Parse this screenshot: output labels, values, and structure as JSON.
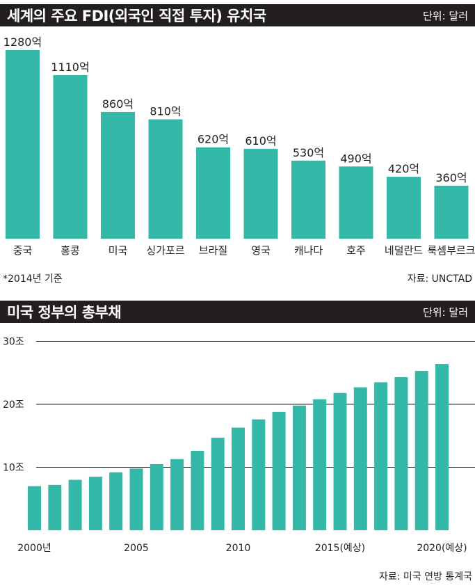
{
  "colors": {
    "bar": "#34b8a8",
    "header_bg": "#231f20",
    "header_text": "#ffffff",
    "grid": "#231f20"
  },
  "chart1": {
    "title": "세계의 주요 FDI(외국인 직접 투자) 유치국",
    "unit": "단위: 달러",
    "footnote": "*2014년 기준",
    "source": "자료: UNCTAD"
  },
  "chart2": {
    "title": "미국 정부의 총부채",
    "unit": "단위: 달러",
    "source": "자료: 미국 연방 통계국"
  },
  "chart_data": [
    {
      "type": "bar",
      "title": "세계의 주요 FDI(외국인 직접 투자) 유치국",
      "categories": [
        "중국",
        "홍콩",
        "미국",
        "싱가포르",
        "브라질",
        "영국",
        "캐나다",
        "호주",
        "네덜란드",
        "룩셈부르크"
      ],
      "values": [
        1280,
        1110,
        860,
        810,
        620,
        610,
        530,
        490,
        420,
        360
      ],
      "value_labels": [
        "1280억",
        "1110억",
        "860억",
        "810억",
        "620억",
        "610억",
        "530억",
        "490억",
        "420억",
        "360억"
      ],
      "ylabel": "단위: 달러",
      "ylim": [
        0,
        1280
      ]
    },
    {
      "type": "bar",
      "title": "미국 정부의 총부채",
      "categories": [
        "2000",
        "2001",
        "2002",
        "2003",
        "2004",
        "2005",
        "2006",
        "2007",
        "2008",
        "2009",
        "2010",
        "2011",
        "2012",
        "2013",
        "2014",
        "2015",
        "2016",
        "2017",
        "2018",
        "2019",
        "2020"
      ],
      "values": [
        7.0,
        7.2,
        8.0,
        8.5,
        9.2,
        9.8,
        10.5,
        11.3,
        12.6,
        14.7,
        16.3,
        17.6,
        18.8,
        19.8,
        20.8,
        21.8,
        22.7,
        23.5,
        24.3,
        25.3,
        26.4
      ],
      "x_tick_labels": [
        {
          "index": 0,
          "label": "2000년"
        },
        {
          "index": 5,
          "label": "2005"
        },
        {
          "index": 10,
          "label": "2010"
        },
        {
          "index": 15,
          "label": "2015(예상)"
        },
        {
          "index": 20,
          "label": "2020(예상)"
        }
      ],
      "y_ticks": [
        {
          "value": 10,
          "label": "10조"
        },
        {
          "value": 20,
          "label": "20조"
        },
        {
          "value": 30,
          "label": "30조"
        }
      ],
      "ylabel": "단위: 달러",
      "ylim": [
        0,
        30
      ],
      "grid": true
    }
  ]
}
